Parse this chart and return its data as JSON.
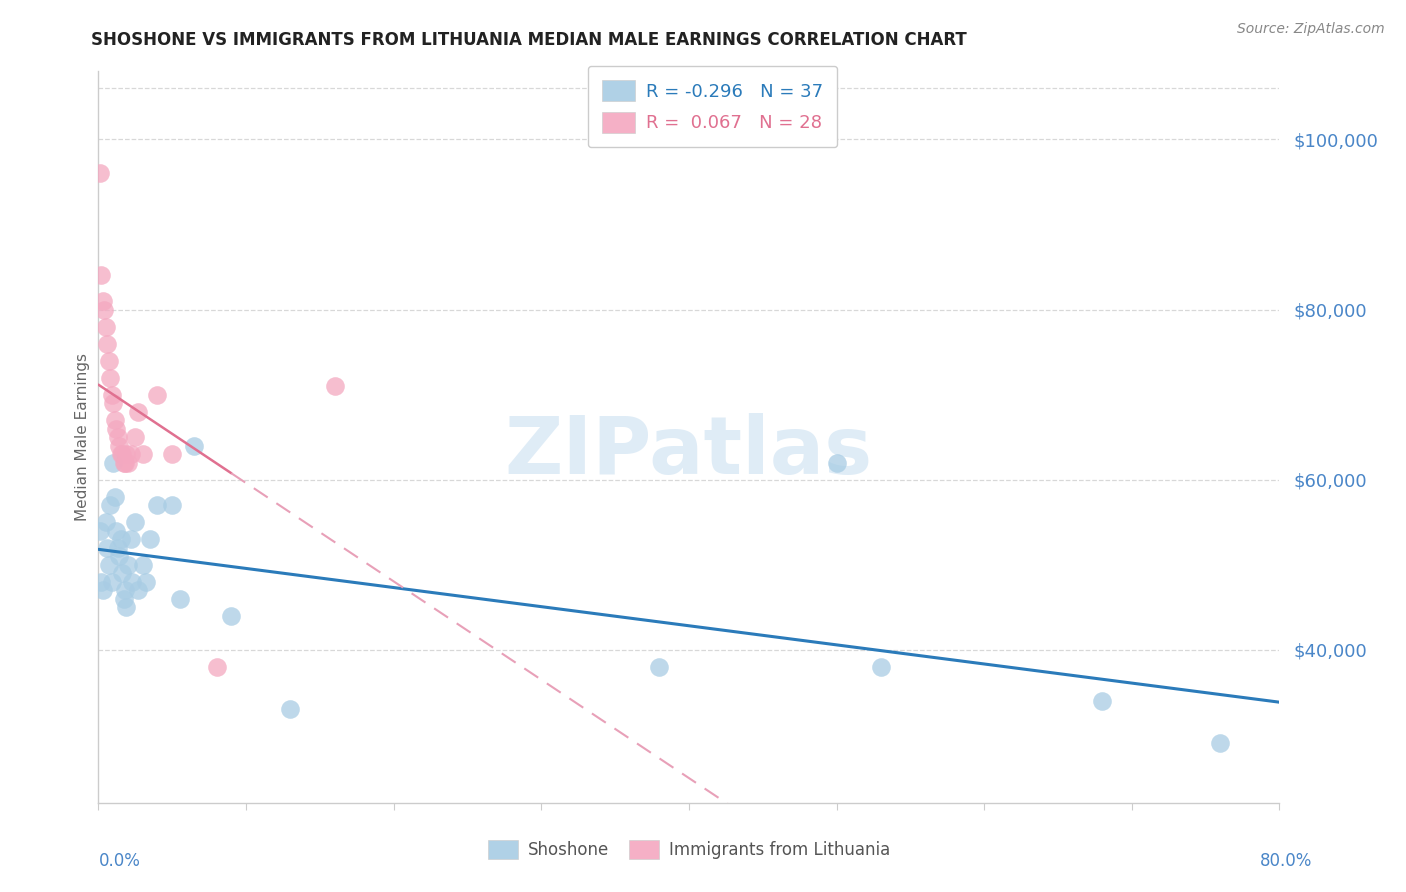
{
  "title": "SHOSHONE VS IMMIGRANTS FROM LITHUANIA MEDIAN MALE EARNINGS CORRELATION CHART",
  "source": "Source: ZipAtlas.com",
  "ylabel": "Median Male Earnings",
  "ytick_values": [
    40000,
    60000,
    80000,
    100000
  ],
  "watermark": "ZIPatlas",
  "legend_blue_r": "-0.296",
  "legend_blue_n": "37",
  "legend_pink_r": "0.067",
  "legend_pink_n": "28",
  "blue_color": "#a8cce4",
  "pink_color": "#f4a8c0",
  "blue_line_color": "#2b7bba",
  "pink_line_color": "#e07090",
  "pink_dashed_color": "#e8a0b8",
  "shoshone_x": [
    0.001,
    0.002,
    0.003,
    0.005,
    0.006,
    0.007,
    0.008,
    0.009,
    0.01,
    0.011,
    0.012,
    0.013,
    0.014,
    0.015,
    0.016,
    0.017,
    0.018,
    0.019,
    0.02,
    0.022,
    0.023,
    0.025,
    0.027,
    0.03,
    0.032,
    0.035,
    0.04,
    0.05,
    0.055,
    0.065,
    0.09,
    0.13,
    0.38,
    0.5,
    0.53,
    0.68,
    0.76
  ],
  "shoshone_y": [
    54000,
    48000,
    47000,
    55000,
    52000,
    50000,
    57000,
    48000,
    62000,
    58000,
    54000,
    52000,
    51000,
    53000,
    49000,
    46000,
    47000,
    45000,
    50000,
    53000,
    48000,
    55000,
    47000,
    50000,
    48000,
    53000,
    57000,
    57000,
    46000,
    64000,
    44000,
    33000,
    38000,
    62000,
    38000,
    34000,
    29000
  ],
  "lithuania_x": [
    0.001,
    0.002,
    0.003,
    0.004,
    0.005,
    0.006,
    0.007,
    0.008,
    0.009,
    0.01,
    0.011,
    0.012,
    0.013,
    0.014,
    0.015,
    0.016,
    0.017,
    0.018,
    0.019,
    0.02,
    0.022,
    0.025,
    0.027,
    0.03,
    0.04,
    0.05,
    0.08,
    0.16
  ],
  "lithuania_y": [
    96000,
    84000,
    81000,
    80000,
    78000,
    76000,
    74000,
    72000,
    70000,
    69000,
    67000,
    66000,
    65000,
    64000,
    63000,
    63000,
    62000,
    62000,
    63000,
    62000,
    63000,
    65000,
    68000,
    63000,
    70000,
    63000,
    38000,
    71000
  ],
  "xlim": [
    0.0,
    0.8
  ],
  "ylim": [
    22000,
    108000
  ],
  "title_color": "#222222",
  "axis_label_color": "#4a86c8",
  "ylabel_color": "#666666",
  "source_color": "#888888",
  "grid_color": "#d8d8d8",
  "spine_color": "#cccccc"
}
